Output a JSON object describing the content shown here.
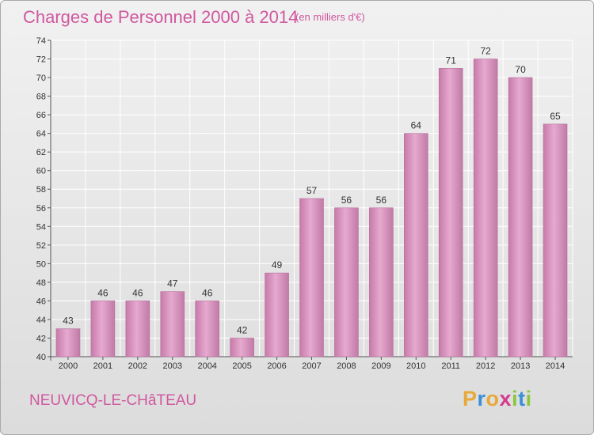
{
  "title": "Charges de Personnel 2000 à 2014",
  "subtitle": "(en milliers d'€)",
  "commune": "NEUVICQ-LE-CHâTEAU",
  "logo": {
    "letters": [
      "P",
      "r",
      "o",
      "x",
      "i",
      "t",
      "i"
    ],
    "colors": [
      "#e8a93a",
      "#3a8fd6",
      "#e8a93a",
      "#d63a8f",
      "#8cc63f",
      "#3a8fd6",
      "#8cc63f"
    ]
  },
  "colors": {
    "bar": "#d58ab8",
    "bar_light": "#e6a9cf",
    "bar_dark": "#b86f9c",
    "accent": "#d0589f",
    "grid": "#ffffff"
  },
  "chart_data": {
    "type": "bar",
    "title": "Charges de Personnel 2000 à 2014",
    "subtitle": "(en milliers d'€)",
    "categories": [
      "2000",
      "2001",
      "2002",
      "2003",
      "2004",
      "2005",
      "2006",
      "2007",
      "2008",
      "2009",
      "2010",
      "2011",
      "2012",
      "2013",
      "2014"
    ],
    "values": [
      43,
      46,
      46,
      47,
      46,
      42,
      49,
      57,
      56,
      56,
      64,
      71,
      72,
      70,
      65
    ],
    "ylim": [
      40,
      74
    ],
    "yticks": [
      40,
      42,
      44,
      46,
      48,
      50,
      52,
      54,
      56,
      58,
      60,
      62,
      64,
      66,
      68,
      70,
      72,
      74
    ],
    "grid": true,
    "data_labels": true
  }
}
